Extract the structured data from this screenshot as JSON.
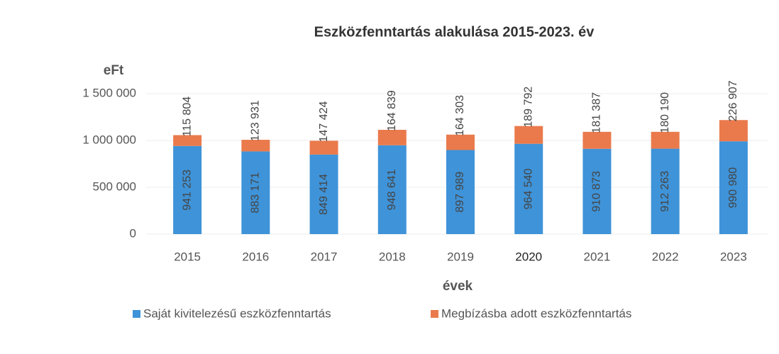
{
  "chart_data": {
    "type": "stacked_bar",
    "title": "Eszközfenntartás alakulása 2015-2023. év",
    "y_axis_label": "eFt",
    "x_axis_label": "évek",
    "categories": [
      "2015",
      "2016",
      "2017",
      "2018",
      "2019",
      "2020",
      "2021",
      "2022",
      "2023"
    ],
    "series": [
      {
        "name": "Saját kivitelezésű eszközfenntartás",
        "color": "#3f93d8",
        "values": [
          941253,
          883171,
          849414,
          948641,
          897989,
          964540,
          910873,
          912263,
          990980
        ],
        "value_labels": [
          "941 253",
          "883 171",
          "849 414",
          "948 641",
          "897 989",
          "964 540",
          "910 873",
          "912 263",
          "990 980"
        ]
      },
      {
        "name": "Megbízásba adott eszközfenntartás",
        "color": "#ea7a4c",
        "values": [
          115804,
          123931,
          147424,
          164839,
          164303,
          189792,
          181387,
          180190,
          226907
        ],
        "value_labels": [
          "115 804",
          "123 931",
          "147 424",
          "164 839",
          "164 303",
          "189 792",
          "181 387",
          "180 190",
          "226 907"
        ]
      }
    ],
    "ylim": [
      0,
      1500000
    ],
    "yticks": [
      0,
      {
        "value": 500000,
        "label": "500 000"
      },
      {
        "value": 1000000,
        "label": "1 000 000"
      },
      {
        "value": 1500000,
        "label": "1 500 000"
      }
    ],
    "grid": true,
    "legend": "bottom"
  }
}
